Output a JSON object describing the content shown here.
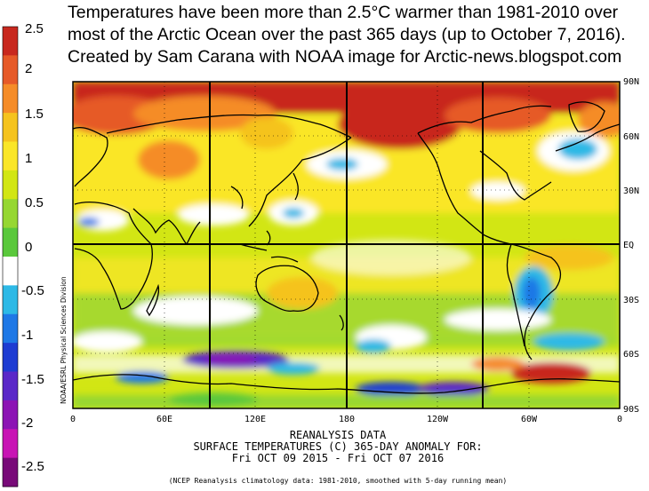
{
  "title": {
    "line1": "Temperatures have been more than 2.5°C warmer than 1981-2010 over",
    "line2": "most of the Arctic Ocean over the past 365 days (up to October 7, 2016).",
    "line3": "Created by Sam Carana with NOAA image for Arctic-news.blogspot.com"
  },
  "colorbar": {
    "labels": [
      "2.5",
      "2",
      "1.5",
      "1",
      "0.5",
      "0",
      "-0.5",
      "-1",
      "-1.5",
      "-2",
      "-2.5"
    ],
    "colors": [
      "#c8281e",
      "#e65a28",
      "#f58c28",
      "#f5c31e",
      "#fae628",
      "#d2e614",
      "#96d732",
      "#5ac83c",
      "#ffffff",
      "#2db9e6",
      "#1e78e6",
      "#1e3cd2",
      "#5a28c8",
      "#8c14b4",
      "#c814b4",
      "#780a78"
    ]
  },
  "map": {
    "lat_labels": [
      "90N",
      "60N",
      "30N",
      "EQ",
      "30S",
      "60S",
      "90S"
    ],
    "lon_labels": [
      "0",
      "60E",
      "120E",
      "180",
      "120W",
      "60W",
      "0"
    ]
  },
  "caption": {
    "line1": "REANALYSIS DATA",
    "line2": "SURFACE TEMPERATURES (C)   365-DAY ANOMALY FOR:",
    "line3": "Fri OCT 09 2015 - Fri OCT 07 2016"
  },
  "footnote": "(NCEP Reanalysis climatology data: 1981-2010, smoothed with 5-day running mean)",
  "side_label": "NOAA/ESRL Physical Sciences Division"
}
